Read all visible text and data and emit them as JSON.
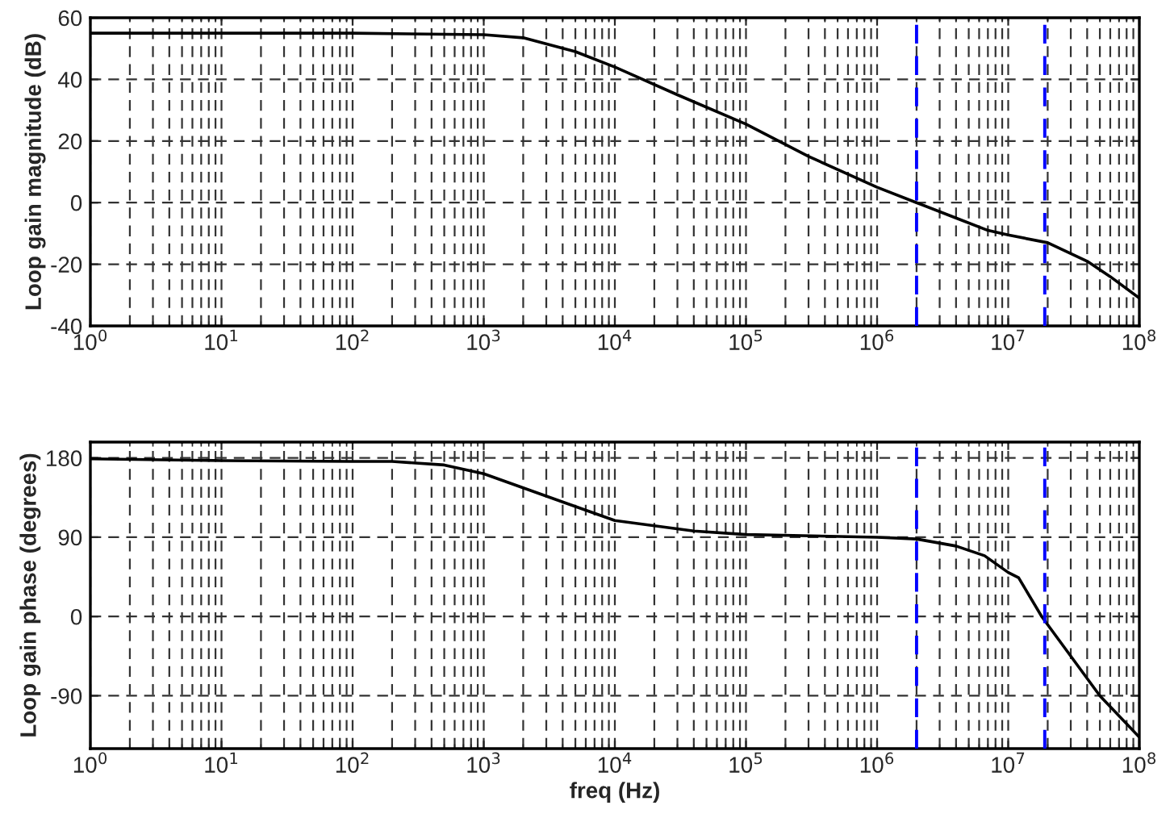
{
  "chart_data": [
    {
      "type": "line",
      "ylabel": "Loop gain magnitude (dB)",
      "x": [
        1,
        10,
        100,
        1000,
        2000,
        5000,
        10000,
        30000,
        100000,
        300000,
        1000000,
        2000000,
        4000000,
        7000000,
        10000000,
        20000000,
        40000000,
        60000000,
        100000000
      ],
      "series": [
        {
          "color": "#000000",
          "values": [
            55,
            55,
            55,
            54.5,
            53.5,
            49,
            44,
            35,
            25.5,
            15,
            5,
            0,
            -5,
            -9,
            -10.5,
            -13,
            -19,
            -24,
            -31
          ]
        }
      ],
      "log": "x",
      "xlim": [
        1,
        100000000
      ],
      "ylim": [
        -40,
        60
      ],
      "xticks": [
        {
          "value": 1,
          "label": "10$^{0}$"
        },
        {
          "value": 10,
          "label": "10$^{1}$"
        },
        {
          "value": 100,
          "label": "10$^{2}$"
        },
        {
          "value": 1000,
          "label": "10$^{3}$"
        },
        {
          "value": 10000,
          "label": "10$^{4}$"
        },
        {
          "value": 100000,
          "label": "10$^{5}$"
        },
        {
          "value": 1000000,
          "label": "10$^{6}$"
        },
        {
          "value": 10000000,
          "label": "10$^{7}$"
        },
        {
          "value": 100000000,
          "label": "10$^{8}$"
        }
      ],
      "yticks": [
        -40,
        -20,
        0,
        20,
        40,
        60
      ],
      "grid": true,
      "line_style": "solid",
      "ref_lines": [
        {
          "axis": "x",
          "value": 2000000,
          "color": "#0000ff",
          "line_style": "dashed"
        },
        {
          "axis": "x",
          "value": 19000000,
          "color": "#0000ff",
          "line_style": "dashed"
        }
      ]
    },
    {
      "type": "line",
      "ylabel": "Loop gain phase (degrees)",
      "xlabel": "freq (Hz)",
      "x": [
        1,
        10,
        100,
        200,
        500,
        1000,
        2000,
        4000,
        10000,
        40000,
        100000,
        1000000,
        2000000,
        4000000,
        6600000,
        10000000,
        12000000,
        18000000,
        50000000,
        100000000
      ],
      "series": [
        {
          "color": "#000000",
          "values": [
            179,
            177,
            176,
            176,
            172,
            162,
            146,
            130,
            109,
            97,
            93,
            90,
            88,
            80,
            69,
            50,
            44,
            0,
            -90,
            -137
          ]
        }
      ],
      "log": "x",
      "xlim": [
        1,
        100000000
      ],
      "ylim": [
        -150,
        198
      ],
      "xticks": [
        {
          "value": 1,
          "label": "10$^{0}$"
        },
        {
          "value": 10,
          "label": "10$^{1}$"
        },
        {
          "value": 100,
          "label": "10$^{2}$"
        },
        {
          "value": 1000,
          "label": "10$^{3}$"
        },
        {
          "value": 10000,
          "label": "10$^{4}$"
        },
        {
          "value": 100000,
          "label": "10$^{5}$"
        },
        {
          "value": 1000000,
          "label": "10$^{6}$"
        },
        {
          "value": 10000000,
          "label": "10$^{7}$"
        },
        {
          "value": 100000000,
          "label": "10$^{8}$"
        }
      ],
      "yticks": [
        -90,
        0,
        90,
        180
      ],
      "grid": true,
      "line_style": "solid",
      "ref_lines": [
        {
          "axis": "x",
          "value": 2000000,
          "color": "#0000ff",
          "line_style": "dashed"
        },
        {
          "axis": "x",
          "value": 19000000,
          "color": "#0000ff",
          "line_style": "dashed"
        }
      ]
    }
  ]
}
